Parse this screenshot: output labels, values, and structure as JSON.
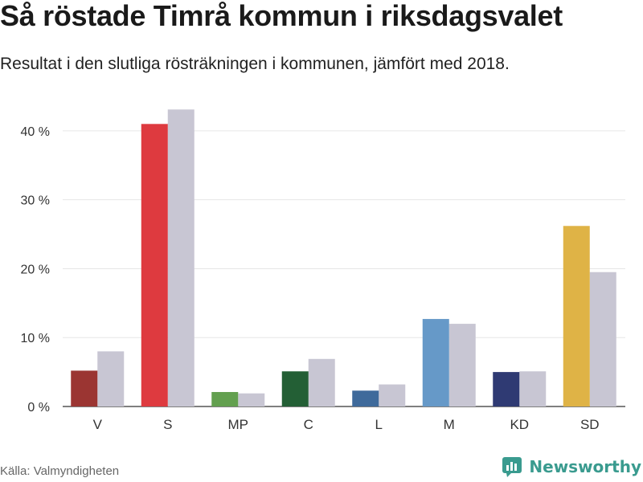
{
  "title": "Så röstade Timrå kommun i riksdagsvalet",
  "subtitle": "Resultat i den slutliga rösträkningen i kommunen, jämfört med 2018.",
  "source": "Källa: Valmyndigheten",
  "brand": {
    "name": "Newsworthy",
    "icon": "newsworthy-logo-icon",
    "color": "#3a9b8f"
  },
  "chart_data": {
    "type": "bar",
    "categories": [
      "V",
      "S",
      "MP",
      "C",
      "L",
      "M",
      "KD",
      "SD"
    ],
    "series": [
      {
        "values": [
          5.2,
          41.0,
          2.1,
          5.1,
          2.3,
          12.7,
          5.0,
          26.2
        ]
      },
      {
        "values": [
          8.0,
          43.1,
          1.9,
          6.9,
          3.2,
          12.0,
          5.1,
          19.5
        ]
      }
    ],
    "colors_current": [
      "#9b3532",
      "#de3a3f",
      "#63a04f",
      "#235f35",
      "#3f6a9b",
      "#6699c8",
      "#2f3a73",
      "#dfb346"
    ],
    "color_previous": "#c8c6d3",
    "ylim": [
      0,
      45
    ],
    "yticks": [
      0,
      10,
      20,
      30,
      40
    ],
    "ytick_labels": [
      "0 %",
      "10 %",
      "20 %",
      "30 %",
      "40 %"
    ],
    "grid": true
  }
}
